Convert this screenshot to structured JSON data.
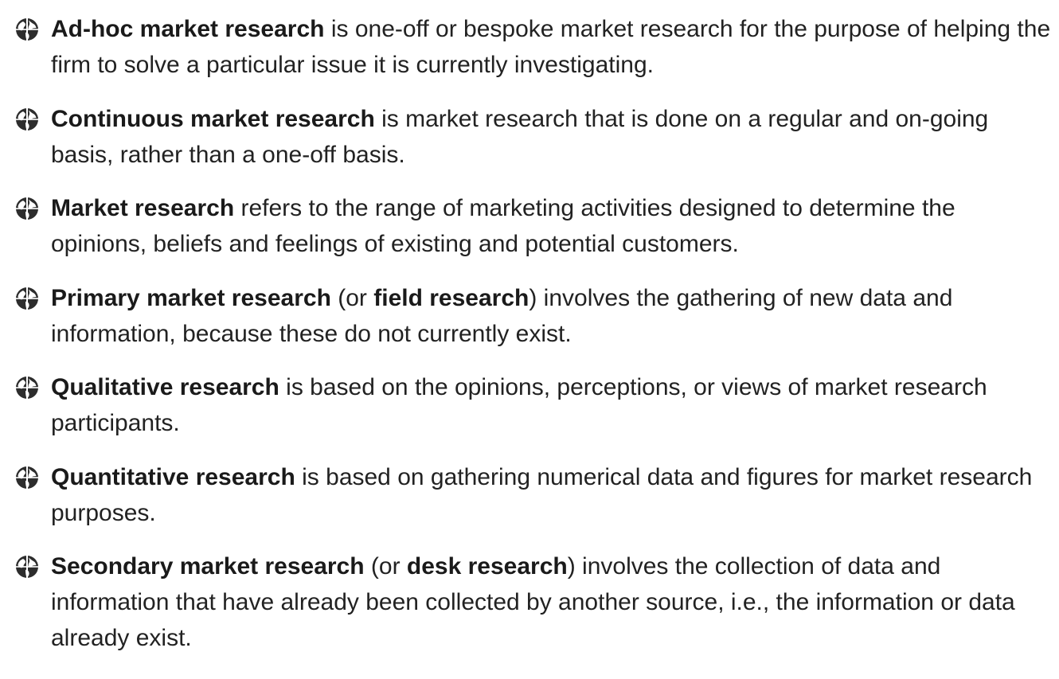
{
  "bullet_icon": "globe-bullet-icon",
  "accent_color": "#2a2a2a",
  "entries": [
    {
      "term": "Ad-hoc market research",
      "text": " is one-off or bespoke market research for the purpose of helping the firm to solve a particular issue it is currently investigating."
    },
    {
      "term": "Continuous market research",
      "text": " is market research that is done on a regular and on-going basis, rather than a one-off basis."
    },
    {
      "term": "Market research",
      "text": " refers to the range of marketing activities designed to determine the opinions, beliefs and feelings of existing and potential customers."
    },
    {
      "term": "Primary market research",
      "mid": " (or ",
      "alt_term": "field research",
      "text": ") involves the gathering of new data and information, because these do not currently exist."
    },
    {
      "term": "Qualitative research",
      "text": " is based on the opinions, perceptions, or views of market research participants."
    },
    {
      "term": "Quantitative research",
      "text": " is based on gathering numerical data and figures for market research purposes."
    },
    {
      "term": "Secondary market research",
      "mid": " (or ",
      "alt_term": "desk research",
      "text": ") involves the collection of data and information that have already been collected by another source, i.e., the information or data already exist."
    }
  ]
}
